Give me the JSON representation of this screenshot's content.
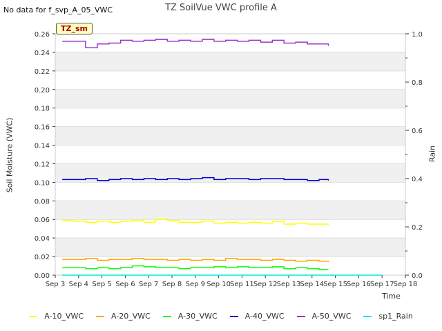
{
  "page": {
    "title": "TZ SoilVue VWC profile A",
    "nodata_note": "No data for f_svp_A_05_VWC",
    "badge": "TZ_sm"
  },
  "chart_data": {
    "type": "line",
    "title": "TZ SoilVue VWC profile A",
    "xlabel": "Time",
    "ylabel": "Soil Moisture (VWC)",
    "y2label": "Rain",
    "ylim": [
      0.0,
      0.26
    ],
    "y2lim": [
      0.0,
      1.0
    ],
    "xlim": [
      3,
      18
    ],
    "x_tick_labels": [
      "Sep 3",
      "Sep 4",
      "Sep 5",
      "Sep 6",
      "Sep 7",
      "Sep 8",
      "Sep 9",
      "Sep 10",
      "Sep 11",
      "Sep 12",
      "Sep 13",
      "Sep 14",
      "Sep 15",
      "Sep 16",
      "Sep 17",
      "Sep 18"
    ],
    "x_tick_values": [
      3,
      4,
      5,
      6,
      7,
      8,
      9,
      10,
      11,
      12,
      13,
      14,
      15,
      16,
      17,
      18
    ],
    "y_tick_labels": [
      "0.00",
      "0.02",
      "0.04",
      "0.06",
      "0.08",
      "0.10",
      "0.12",
      "0.14",
      "0.16",
      "0.18",
      "0.20",
      "0.22",
      "0.24",
      "0.26"
    ],
    "y_tick_values": [
      0,
      0.02,
      0.04,
      0.06,
      0.08,
      0.1,
      0.12,
      0.14,
      0.16,
      0.18,
      0.2,
      0.22,
      0.24,
      0.26
    ],
    "y2_tick_labels": [
      "0.0",
      "0.2",
      "0.4",
      "0.6",
      "0.8",
      "1.0"
    ],
    "y2_tick_values": [
      0,
      0.2,
      0.4,
      0.6,
      0.8,
      1.0
    ],
    "series": [
      {
        "name": "A-10_VWC",
        "color": "#ffff00",
        "x": [
          3.3,
          3.8,
          4.3,
          4.8,
          5.3,
          5.8,
          6.3,
          6.8,
          7.3,
          7.8,
          8.3,
          8.8,
          9.3,
          9.8,
          10.3,
          10.8,
          11.3,
          11.8,
          12.3,
          12.8,
          13.3,
          13.8,
          14.3,
          14.7
        ],
        "values": [
          0.059,
          0.058,
          0.057,
          0.058,
          0.057,
          0.058,
          0.059,
          0.057,
          0.06,
          0.059,
          0.057,
          0.057,
          0.058,
          0.056,
          0.057,
          0.056,
          0.057,
          0.056,
          0.058,
          0.055,
          0.056,
          0.055,
          0.055,
          0.054
        ]
      },
      {
        "name": "A-20_VWC",
        "color": "#ffa500",
        "x": [
          3.3,
          3.8,
          4.3,
          4.8,
          5.3,
          5.8,
          6.3,
          6.8,
          7.3,
          7.8,
          8.3,
          8.8,
          9.3,
          9.8,
          10.3,
          10.8,
          11.3,
          11.8,
          12.3,
          12.8,
          13.3,
          13.8,
          14.3,
          14.7
        ],
        "values": [
          0.017,
          0.017,
          0.018,
          0.016,
          0.017,
          0.017,
          0.018,
          0.017,
          0.017,
          0.016,
          0.017,
          0.016,
          0.017,
          0.016,
          0.018,
          0.017,
          0.017,
          0.016,
          0.017,
          0.016,
          0.015,
          0.016,
          0.015,
          0.014
        ]
      },
      {
        "name": "A-30_VWC",
        "color": "#00ff00",
        "x": [
          3.3,
          3.8,
          4.3,
          4.8,
          5.3,
          5.8,
          6.3,
          6.8,
          7.3,
          7.8,
          8.3,
          8.8,
          9.3,
          9.8,
          10.3,
          10.8,
          11.3,
          11.8,
          12.3,
          12.8,
          13.3,
          13.8,
          14.3,
          14.7
        ],
        "values": [
          0.008,
          0.008,
          0.007,
          0.008,
          0.007,
          0.008,
          0.01,
          0.009,
          0.008,
          0.008,
          0.007,
          0.008,
          0.008,
          0.009,
          0.008,
          0.009,
          0.008,
          0.008,
          0.009,
          0.007,
          0.008,
          0.007,
          0.006,
          0.006
        ]
      },
      {
        "name": "A-40_VWC",
        "color": "#0000cc",
        "x": [
          3.3,
          3.8,
          4.3,
          4.8,
          5.3,
          5.8,
          6.3,
          6.8,
          7.3,
          7.8,
          8.3,
          8.8,
          9.3,
          9.8,
          10.3,
          10.8,
          11.3,
          11.8,
          12.3,
          12.8,
          13.3,
          13.8,
          14.3,
          14.7
        ],
        "values": [
          0.103,
          0.103,
          0.104,
          0.102,
          0.103,
          0.104,
          0.103,
          0.104,
          0.103,
          0.104,
          0.103,
          0.104,
          0.105,
          0.103,
          0.104,
          0.104,
          0.103,
          0.104,
          0.104,
          0.103,
          0.103,
          0.102,
          0.103,
          0.102
        ]
      },
      {
        "name": "A-50_VWC",
        "color": "#9933cc",
        "x": [
          3.3,
          3.8,
          4.3,
          4.8,
          5.3,
          5.8,
          6.3,
          6.8,
          7.3,
          7.8,
          8.3,
          8.8,
          9.3,
          9.8,
          10.3,
          10.8,
          11.3,
          11.8,
          12.3,
          12.8,
          13.3,
          13.8,
          14.3,
          14.7
        ],
        "values": [
          0.252,
          0.252,
          0.245,
          0.249,
          0.25,
          0.253,
          0.252,
          0.253,
          0.254,
          0.252,
          0.253,
          0.252,
          0.254,
          0.252,
          0.253,
          0.252,
          0.253,
          0.251,
          0.253,
          0.25,
          0.251,
          0.249,
          0.249,
          0.247
        ]
      },
      {
        "name": "sp1_Rain",
        "color": "#00e5ee",
        "axis": "right",
        "x": [
          3.3,
          17.0
        ],
        "values": [
          0.0,
          0.0
        ]
      }
    ],
    "legend_position": "bottom"
  }
}
